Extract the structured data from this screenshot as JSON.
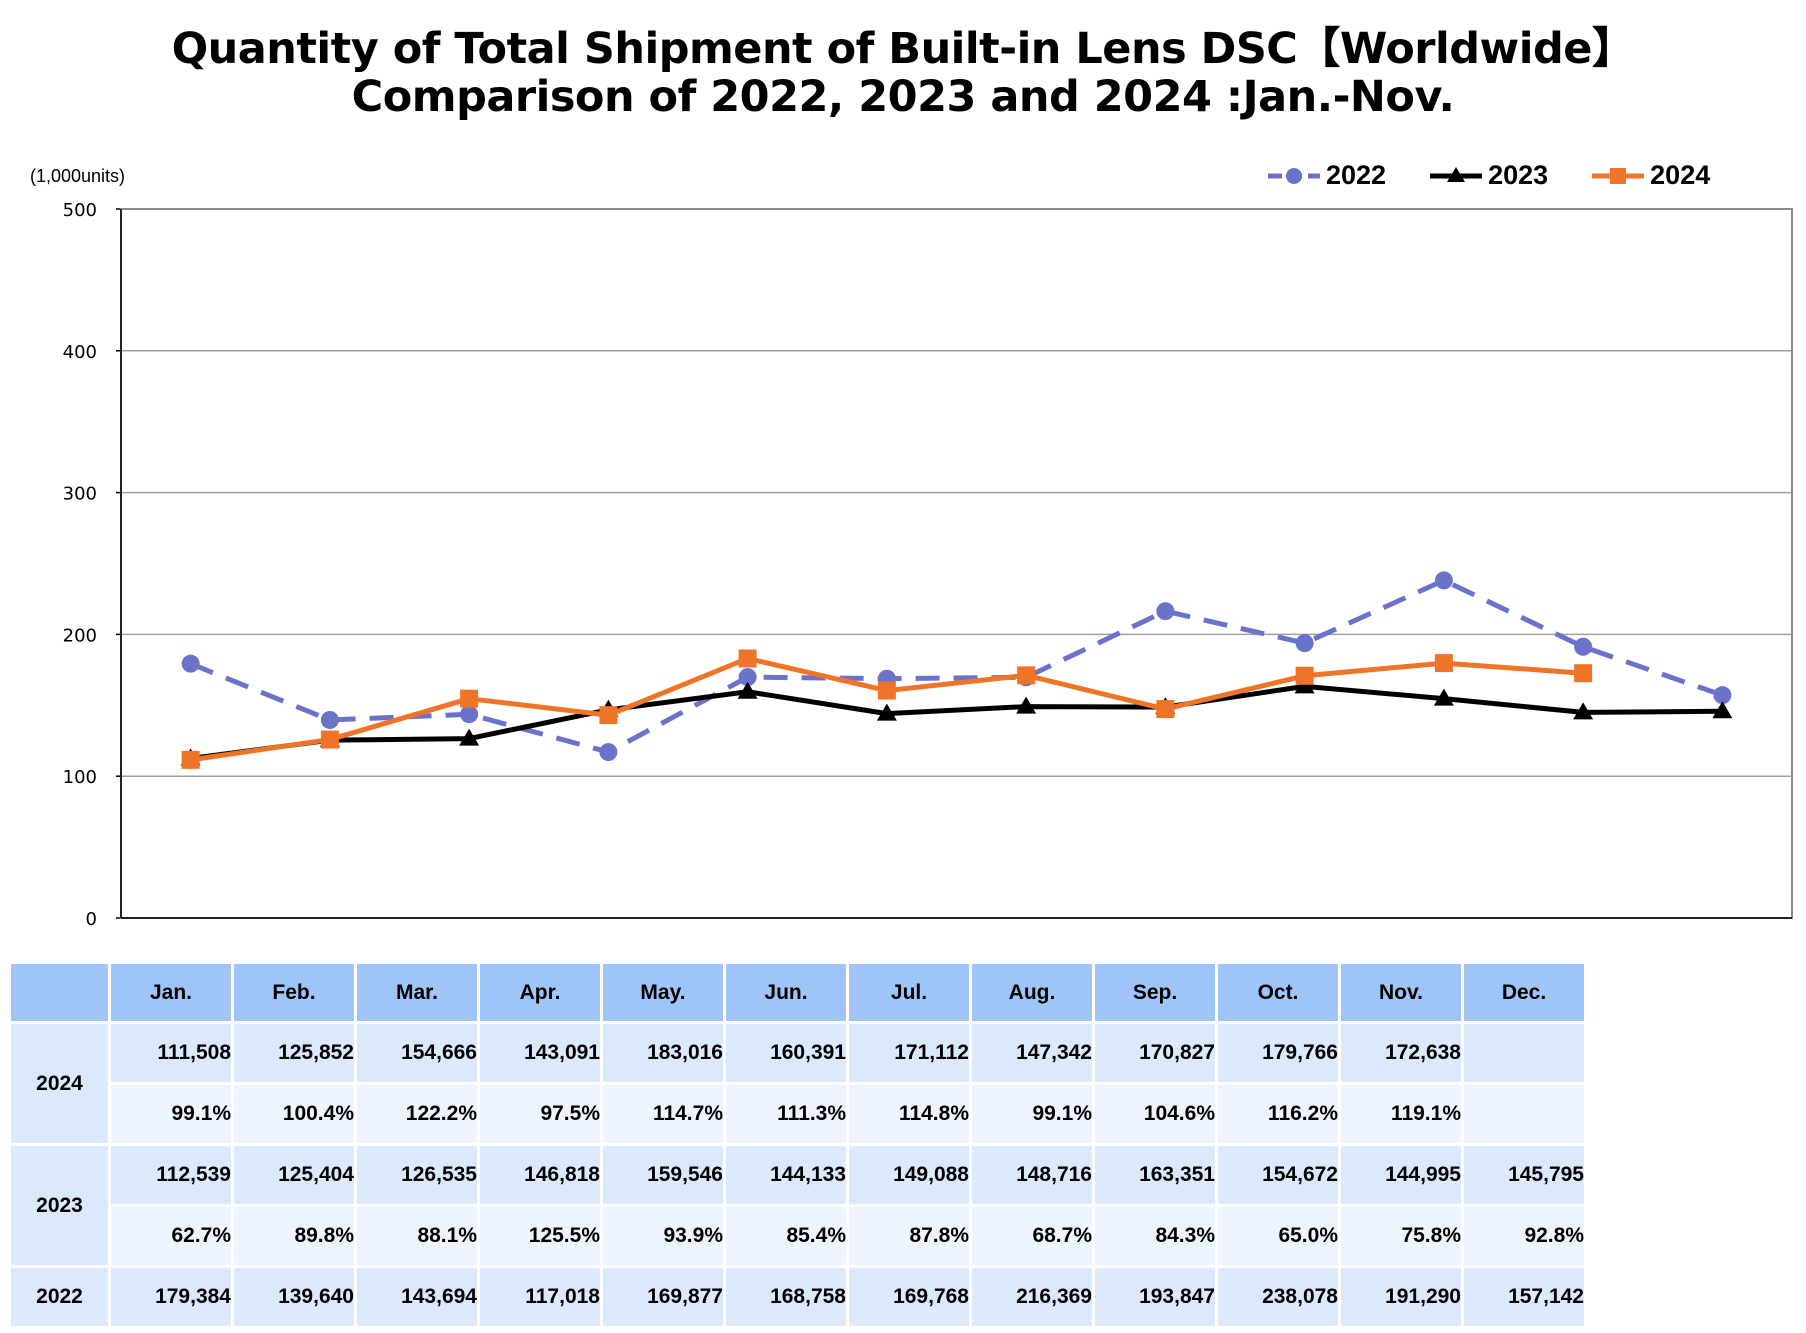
{
  "title_line1": "Quantity of Total Shipment of Built-in Lens DSC【Worldwide】",
  "title_line2": "Comparison of 2022, 2023 and 2024 :Jan.-Nov.",
  "unit_label": "(1,000units)",
  "chart_data": {
    "type": "line",
    "title": "Quantity of Total Shipment of Built-in Lens DSC【Worldwide】 Comparison of 2022, 2023 and 2024 :Jan.-Nov.",
    "xlabel": "",
    "ylabel": "(1,000units)",
    "categories": [
      "Jan.",
      "Feb.",
      "Mar.",
      "Apr.",
      "May.",
      "Jun.",
      "Jul.",
      "Aug.",
      "Sep.",
      "Oct.",
      "Nov.",
      "Dec."
    ],
    "ylim": [
      0,
      500
    ],
    "yticks": [
      0,
      100,
      200,
      300,
      400,
      500
    ],
    "grid": true,
    "legend_position": "top-right",
    "series": [
      {
        "name": "2022",
        "color": "#6b72c9",
        "marker": "circle",
        "dash": true,
        "values": [
          179.384,
          139.64,
          143.694,
          117.018,
          169.877,
          168.758,
          169.768,
          216.369,
          193.847,
          238.078,
          191.29,
          157.142
        ]
      },
      {
        "name": "2023",
        "color": "#000000",
        "marker": "triangle",
        "dash": false,
        "values": [
          112.539,
          125.404,
          126.535,
          146.818,
          159.546,
          144.133,
          149.088,
          148.716,
          163.351,
          154.672,
          144.995,
          145.795
        ]
      },
      {
        "name": "2024",
        "color": "#f07428",
        "marker": "square",
        "dash": false,
        "values": [
          111.508,
          125.852,
          154.666,
          143.091,
          183.016,
          160.391,
          171.112,
          147.342,
          170.827,
          179.766,
          172.638,
          null
        ]
      }
    ]
  },
  "legend": [
    {
      "label": "2022"
    },
    {
      "label": "2023"
    },
    {
      "label": "2024"
    }
  ],
  "table": {
    "header": [
      "",
      "Jan.",
      "Feb.",
      "Mar.",
      "Apr.",
      "May.",
      "Jun.",
      "Jul.",
      "Aug.",
      "Sep.",
      "Oct.",
      "Nov.",
      "Dec."
    ],
    "rows": [
      {
        "year": "2024",
        "values": [
          "111,508",
          "125,852",
          "154,666",
          "143,091",
          "183,016",
          "160,391",
          "171,112",
          "147,342",
          "170,827",
          "179,766",
          "172,638",
          ""
        ],
        "pct": [
          "99.1%",
          "100.4%",
          "122.2%",
          "97.5%",
          "114.7%",
          "111.3%",
          "114.8%",
          "99.1%",
          "104.6%",
          "116.2%",
          "119.1%",
          ""
        ]
      },
      {
        "year": "2023",
        "values": [
          "112,539",
          "125,404",
          "126,535",
          "146,818",
          "159,546",
          "144,133",
          "149,088",
          "148,716",
          "163,351",
          "154,672",
          "144,995",
          "145,795"
        ],
        "pct": [
          "62.7%",
          "89.8%",
          "88.1%",
          "125.5%",
          "93.9%",
          "85.4%",
          "87.8%",
          "68.7%",
          "84.3%",
          "65.0%",
          "75.8%",
          "92.8%"
        ]
      },
      {
        "year": "2022",
        "values": [
          "179,384",
          "139,640",
          "143,694",
          "117,018",
          "169,877",
          "168,758",
          "169,768",
          "216,369",
          "193,847",
          "238,078",
          "191,290",
          "157,142"
        ]
      }
    ]
  }
}
